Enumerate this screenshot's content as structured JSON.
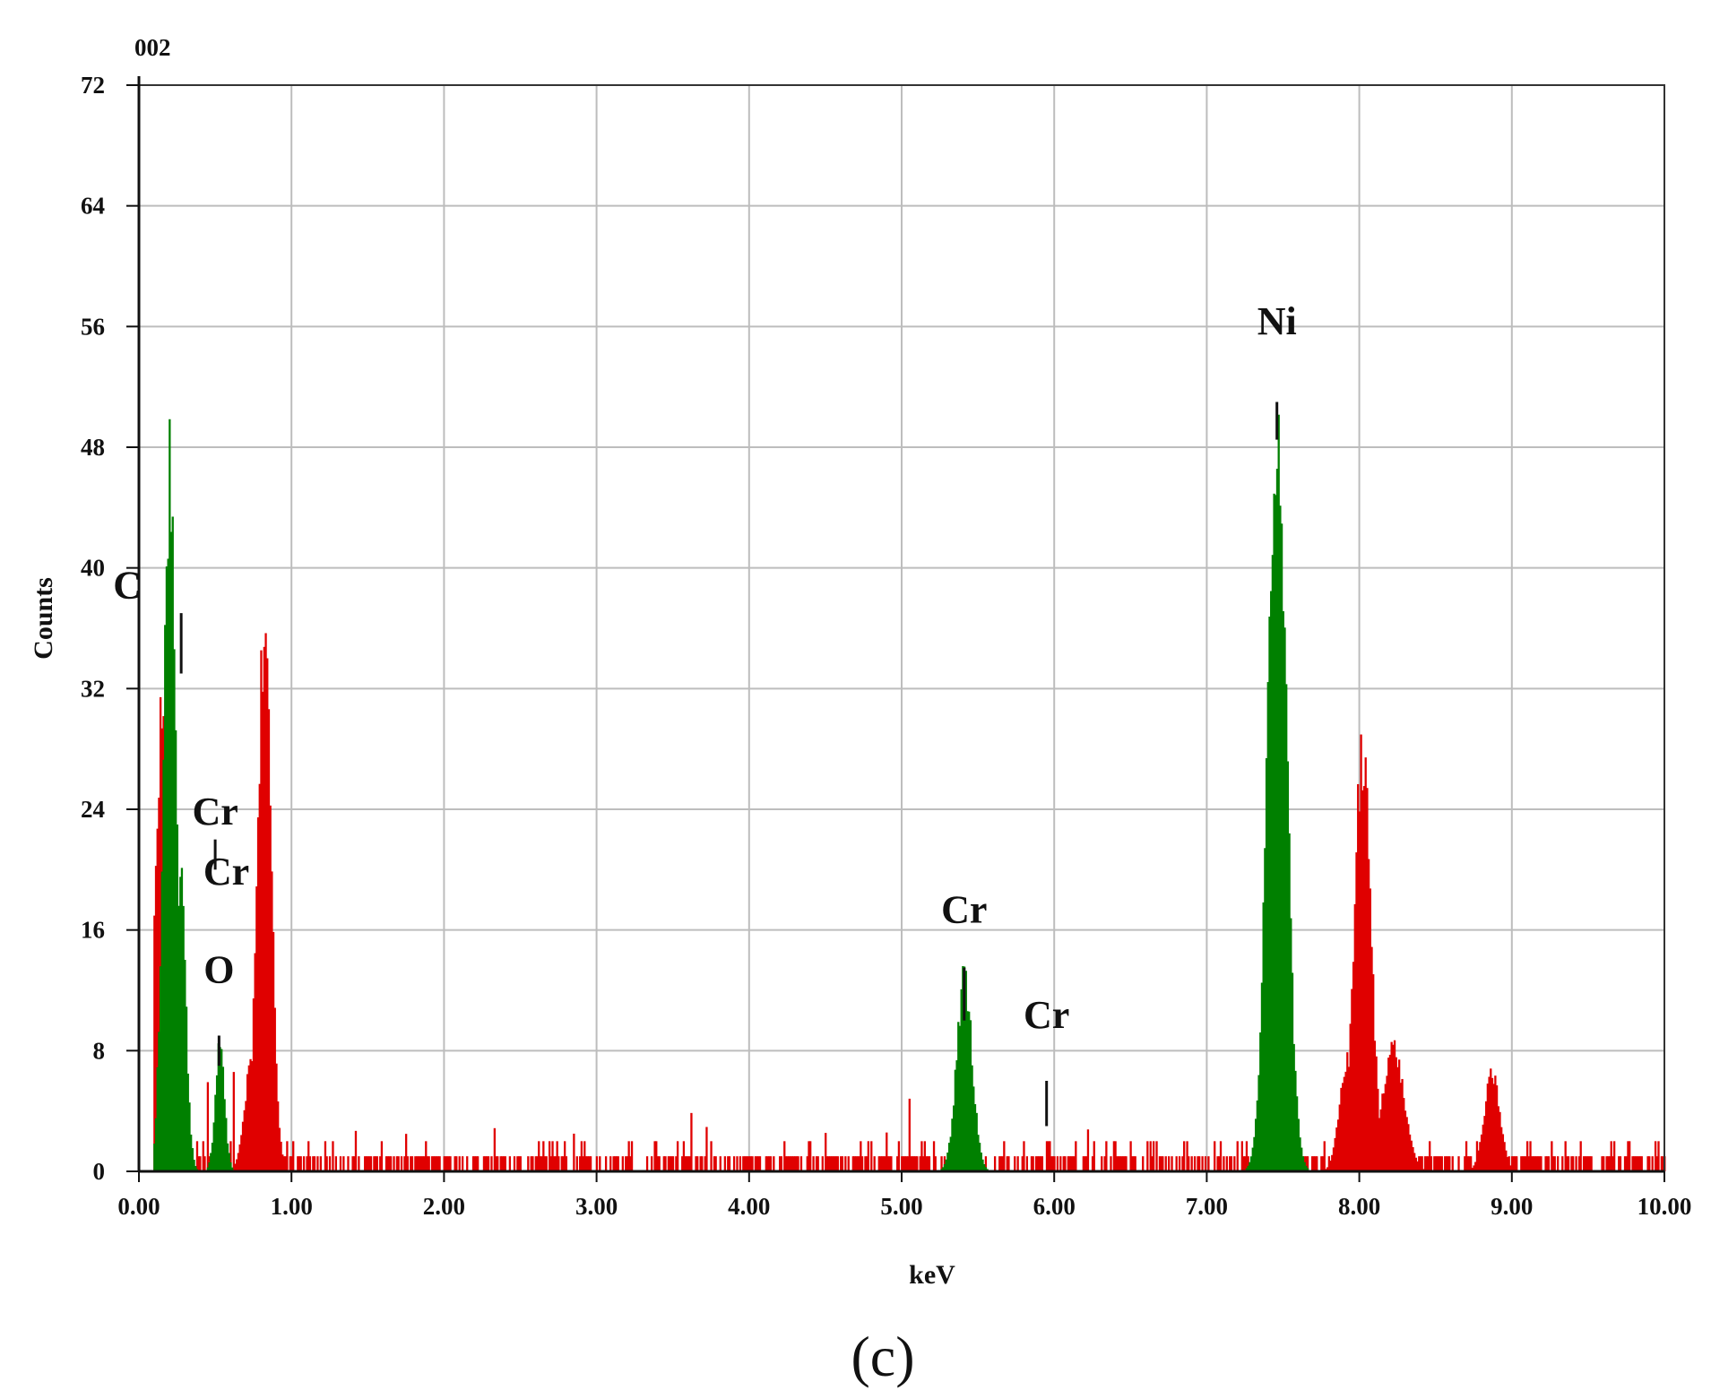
{
  "figure": {
    "corner_label": "002",
    "panel_label": "(c)"
  },
  "chart_data": {
    "type": "bar",
    "title": "",
    "xlabel": "keV",
    "ylabel": "Counts",
    "xlim": [
      0,
      10
    ],
    "ylim": [
      0,
      72
    ],
    "x_ticks": [
      0,
      1,
      2,
      3,
      4,
      5,
      6,
      7,
      8,
      9,
      10
    ],
    "x_tick_labels": [
      "0.00",
      "1.00",
      "2.00",
      "3.00",
      "4.00",
      "5.00",
      "6.00",
      "7.00",
      "8.00",
      "9.00",
      "10.00"
    ],
    "y_ticks": [
      0,
      8,
      16,
      24,
      32,
      40,
      48,
      56,
      64,
      72
    ],
    "y_tick_labels": [
      "0",
      "8",
      "16",
      "24",
      "32",
      "40",
      "48",
      "56",
      "64",
      "72"
    ],
    "grid": true,
    "series": [
      {
        "color": "#e00000",
        "peaks": [
          {
            "center": 0.15,
            "height": 33,
            "width": 0.045
          },
          {
            "center": 0.82,
            "height": 39,
            "width": 0.045
          },
          {
            "center": 0.75,
            "height": 9,
            "width": 0.05
          },
          {
            "center": 8.02,
            "height": 30,
            "width": 0.055
          },
          {
            "center": 8.22,
            "height": 9,
            "width": 0.07
          },
          {
            "center": 7.92,
            "height": 8,
            "width": 0.05
          },
          {
            "center": 8.87,
            "height": 7,
            "width": 0.05
          }
        ],
        "background": [
          [
            0.45,
            7
          ],
          [
            0.62,
            7
          ],
          [
            1.22,
            2
          ],
          [
            1.42,
            3
          ],
          [
            1.75,
            3
          ],
          [
            2.33,
            3
          ],
          [
            2.85,
            3
          ],
          [
            3.38,
            2
          ],
          [
            3.62,
            4
          ],
          [
            3.72,
            3
          ],
          [
            4.5,
            3
          ],
          [
            4.9,
            3
          ],
          [
            5.05,
            5
          ],
          [
            5.15,
            2
          ],
          [
            5.95,
            2
          ],
          [
            6.22,
            3
          ],
          [
            6.5,
            2
          ],
          [
            6.65,
            2
          ],
          [
            6.85,
            2
          ],
          [
            7.05,
            2
          ],
          [
            7.2,
            2
          ],
          [
            9.3,
            1
          ],
          [
            9.65,
            2
          ]
        ]
      },
      {
        "color": "#008000",
        "peaks": [
          {
            "center": 0.2,
            "height": 51,
            "width": 0.04
          },
          {
            "center": 0.27,
            "height": 21,
            "width": 0.035
          },
          {
            "center": 0.53,
            "height": 9,
            "width": 0.03
          },
          {
            "center": 5.41,
            "height": 14,
            "width": 0.05
          },
          {
            "center": 7.46,
            "height": 55,
            "width": 0.06
          }
        ]
      }
    ],
    "annotations": [
      {
        "text": "C",
        "x": 0.277,
        "y": 38,
        "line_top": 37,
        "line_bottom": 33
      },
      {
        "text": "Cr",
        "x": 0.5,
        "y": 23,
        "line_top": 22,
        "line_bottom": 20
      },
      {
        "text": "Cr",
        "x": 0.573,
        "y": 19,
        "line_top": null,
        "line_bottom": null
      },
      {
        "text": "O",
        "x": 0.525,
        "y": 12.5,
        "line_top": 9,
        "line_bottom": 7
      },
      {
        "text": "Cr",
        "x": 5.41,
        "y": 16.5,
        "line_top": 13.5,
        "line_bottom": 10
      },
      {
        "text": "Cr",
        "x": 5.95,
        "y": 9.5,
        "line_top": 6,
        "line_bottom": 3
      },
      {
        "text": "Ni",
        "x": 7.46,
        "y": 55.5,
        "line_top": 51,
        "line_bottom": 48.5
      }
    ]
  }
}
